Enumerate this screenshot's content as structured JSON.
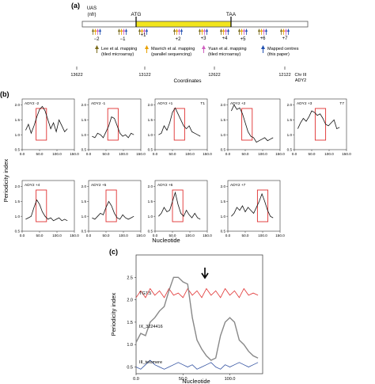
{
  "panel_a": {
    "label": "(a)",
    "uas": [
      "UAS",
      "(nfr)"
    ],
    "atg": "ATG",
    "taa": "TAA",
    "positions": [
      "−2",
      "−1",
      "+1",
      "+2",
      "+3",
      "+4",
      "+5",
      "+6",
      "+7"
    ],
    "legend": [
      {
        "line1": "Lee et al. mapping",
        "line2": "(tiled microarray)",
        "color": "#7a6a1a"
      },
      {
        "line1": "Mavrich et al. mapping",
        "line2": "(parallel sequencing)",
        "color": "#e8a000"
      },
      {
        "line1": "Yuan et al. mapping",
        "line2": "(tiled microarray)",
        "color": "#d060c0"
      },
      {
        "line1": "Mapped centres",
        "line2": "(this paper)",
        "color": "#1f4fb0"
      }
    ],
    "coord_ticks": [
      "13622",
      "13122",
      "12622",
      "12122"
    ],
    "chr_label": [
      "Chr III",
      "ADY2"
    ],
    "coord_axis_label": "Coordinates"
  },
  "panel_b": {
    "label": "(b)",
    "ylabel": "Periodicity index",
    "xlabel": "Nucleotide",
    "xticks": [
      "0.0",
      "50.0",
      "100.0",
      "150.0"
    ],
    "yticks": [
      "0.5",
      "1.0",
      "1.5",
      "2.0"
    ],
    "plots": [
      {
        "title": "ADY2 -2",
        "note": ""
      },
      {
        "title": "ADY2 -1",
        "note": ""
      },
      {
        "title": "ADY2 +1",
        "note": "T1"
      },
      {
        "title": "ADY2 +2",
        "note": ""
      },
      {
        "title": "ADY2 +3",
        "note": "T7"
      },
      {
        "title": "ADY2 +4",
        "note": ""
      },
      {
        "title": "ADY2 +5",
        "note": ""
      },
      {
        "title": "ADY2 +6",
        "note": ""
      },
      {
        "title": "ADY2 +7",
        "note": ""
      }
    ]
  },
  "panel_c": {
    "label": "(c)",
    "ylabel": "Periodicity index",
    "xlabel": "Nucleotide",
    "xticks": [
      "0.0",
      "50.0",
      "100.0"
    ],
    "yticks": [
      "0.5",
      "1.0",
      "1.5",
      "2.0",
      "2.5"
    ],
    "series_labels": [
      "TG7.5",
      "IX_3224416",
      "III_telomere"
    ]
  },
  "chart_data": [
    {
      "type": "line",
      "title": "ADY2 -2",
      "xlabel": "Nucleotide",
      "ylabel": "Periodicity index",
      "xlim": [
        0,
        150
      ],
      "ylim": [
        0.5,
        2.2
      ],
      "highlight_x": [
        40,
        70
      ],
      "series": [
        {
          "x": [
            10,
            18,
            26,
            34,
            42,
            50,
            58,
            66,
            74,
            82,
            90,
            98,
            106,
            114,
            122,
            130
          ],
          "values": [
            1.15,
            1.35,
            1.05,
            1.3,
            1.6,
            1.85,
            1.95,
            1.8,
            1.5,
            1.2,
            1.4,
            1.1,
            1.5,
            1.3,
            1.1,
            1.2
          ]
        }
      ]
    },
    {
      "type": "line",
      "title": "ADY2 -1",
      "xlabel": "Nucleotide",
      "ylabel": "Periodicity index",
      "xlim": [
        0,
        150
      ],
      "ylim": [
        0.5,
        2.2
      ],
      "highlight_x": [
        55,
        85
      ],
      "series": [
        {
          "x": [
            10,
            18,
            26,
            34,
            42,
            50,
            58,
            66,
            74,
            82,
            90,
            98,
            106,
            114,
            122,
            130
          ],
          "values": [
            0.95,
            0.9,
            1.05,
            1.0,
            0.9,
            1.1,
            1.3,
            1.6,
            1.55,
            1.3,
            1.05,
            0.95,
            1.0,
            0.9,
            1.05,
            1.0
          ]
        }
      ]
    },
    {
      "type": "line",
      "title": "ADY2 +1",
      "xlabel": "Nucleotide",
      "ylabel": "Periodicity index",
      "xlim": [
        0,
        150
      ],
      "ylim": [
        0.5,
        2.2
      ],
      "highlight_x": [
        55,
        85
      ],
      "series": [
        {
          "x": [
            10,
            18,
            26,
            34,
            42,
            50,
            58,
            66,
            74,
            82,
            90,
            98,
            106,
            114,
            122,
            130
          ],
          "values": [
            1.0,
            1.05,
            1.3,
            1.15,
            1.4,
            1.75,
            1.9,
            1.7,
            1.5,
            1.3,
            1.2,
            1.3,
            1.1,
            1.05,
            1.0,
            0.95
          ]
        }
      ]
    },
    {
      "type": "line",
      "title": "ADY2 +2",
      "xlabel": "Nucleotide",
      "ylabel": "Periodicity index",
      "xlim": [
        0,
        150
      ],
      "ylim": [
        0.5,
        2.2
      ],
      "highlight_x": [
        40,
        70
      ],
      "series": [
        {
          "x": [
            10,
            18,
            26,
            34,
            42,
            50,
            58,
            66,
            74,
            82,
            90,
            98,
            106,
            114,
            122,
            130
          ],
          "values": [
            1.8,
            2.0,
            1.85,
            1.9,
            1.7,
            1.4,
            1.1,
            0.95,
            0.9,
            0.75,
            0.8,
            0.85,
            0.9,
            0.8,
            0.85,
            0.9
          ]
        }
      ]
    },
    {
      "type": "line",
      "title": "ADY2 +3",
      "xlabel": "Nucleotide",
      "ylabel": "Periodicity index",
      "xlim": [
        0,
        150
      ],
      "ylim": [
        0.5,
        2.2
      ],
      "highlight_x": [
        60,
        90
      ],
      "series": [
        {
          "x": [
            10,
            18,
            26,
            34,
            42,
            50,
            58,
            66,
            74,
            82,
            90,
            98,
            106,
            114,
            122,
            130
          ],
          "values": [
            1.2,
            1.4,
            1.55,
            1.45,
            1.6,
            1.8,
            1.75,
            1.65,
            1.7,
            1.55,
            1.35,
            1.3,
            1.4,
            1.5,
            1.2,
            1.25
          ]
        }
      ]
    },
    {
      "type": "line",
      "title": "ADY2 +4",
      "xlabel": "Nucleotide",
      "ylabel": "Periodicity index",
      "xlim": [
        0,
        150
      ],
      "ylim": [
        0.5,
        2.2
      ],
      "highlight_x": [
        40,
        70
      ],
      "series": [
        {
          "x": [
            10,
            18,
            26,
            34,
            42,
            50,
            58,
            66,
            74,
            82,
            90,
            98,
            106,
            114,
            122,
            130
          ],
          "values": [
            0.9,
            0.95,
            1.0,
            1.3,
            1.55,
            1.4,
            1.15,
            1.0,
            0.9,
            0.95,
            0.85,
            0.9,
            0.95,
            0.85,
            0.9,
            0.85
          ]
        }
      ]
    },
    {
      "type": "line",
      "title": "ADY2 +5",
      "xlabel": "Nucleotide",
      "ylabel": "Periodicity index",
      "xlim": [
        0,
        150
      ],
      "ylim": [
        0.5,
        2.2
      ],
      "highlight_x": [
        50,
        80
      ],
      "series": [
        {
          "x": [
            10,
            18,
            26,
            34,
            42,
            50,
            58,
            66,
            74,
            82,
            90,
            98,
            106,
            114,
            122,
            130
          ],
          "values": [
            0.95,
            0.9,
            1.0,
            1.1,
            1.05,
            1.3,
            1.5,
            1.35,
            1.1,
            0.95,
            0.9,
            1.05,
            0.95,
            0.9,
            0.95,
            1.0
          ]
        }
      ]
    },
    {
      "type": "line",
      "title": "ADY2 +6",
      "xlabel": "Nucleotide",
      "ylabel": "Periodicity index",
      "xlim": [
        0,
        150
      ],
      "ylim": [
        0.5,
        2.2
      ],
      "highlight_x": [
        50,
        80
      ],
      "series": [
        {
          "x": [
            10,
            18,
            26,
            34,
            42,
            50,
            58,
            66,
            74,
            82,
            90,
            98,
            106,
            114,
            122,
            130
          ],
          "values": [
            1.0,
            1.1,
            1.3,
            1.15,
            1.2,
            1.5,
            1.8,
            1.4,
            1.1,
            1.0,
            1.2,
            1.05,
            0.95,
            1.1,
            0.95,
            0.9
          ]
        }
      ]
    },
    {
      "type": "line",
      "title": "ADY2 +7",
      "xlabel": "Nucleotide",
      "ylabel": "Periodicity index",
      "xlim": [
        0,
        150
      ],
      "ylim": [
        0.5,
        2.2
      ],
      "highlight_x": [
        85,
        115
      ],
      "series": [
        {
          "x": [
            10,
            18,
            26,
            34,
            42,
            50,
            58,
            66,
            74,
            82,
            90,
            98,
            106,
            114,
            122,
            130
          ],
          "values": [
            1.0,
            1.1,
            1.3,
            1.2,
            1.35,
            1.15,
            1.3,
            1.2,
            1.1,
            1.3,
            1.5,
            1.75,
            1.5,
            1.2,
            1.0,
            0.95
          ]
        }
      ]
    },
    {
      "type": "line",
      "title": "",
      "xlabel": "Nucleotide",
      "ylabel": "Periodicity index",
      "xlim": [
        0,
        135
      ],
      "ylim": [
        0.35,
        3.0
      ],
      "series": [
        {
          "name": "TG7.5",
          "color": "#e03030",
          "x": [
            0,
            5,
            10,
            15,
            20,
            25,
            30,
            35,
            40,
            45,
            50,
            55,
            60,
            65,
            70,
            75,
            80,
            85,
            90,
            95,
            100,
            105,
            110,
            115,
            120,
            125,
            130
          ],
          "values": [
            2.05,
            2.2,
            2.05,
            2.25,
            2.1,
            2.2,
            2.05,
            2.25,
            2.1,
            2.15,
            2.05,
            2.25,
            2.1,
            2.2,
            2.05,
            2.25,
            2.1,
            2.2,
            2.05,
            2.25,
            2.1,
            2.2,
            2.05,
            2.25,
            2.1,
            2.15,
            2.1
          ]
        },
        {
          "name": "IX_3224416",
          "color": "#888888",
          "x": [
            0,
            5,
            10,
            15,
            20,
            25,
            30,
            35,
            40,
            45,
            50,
            55,
            60,
            65,
            70,
            75,
            80,
            85,
            90,
            95,
            100,
            105,
            110,
            115,
            120,
            125,
            130
          ],
          "values": [
            1.05,
            1.25,
            1.2,
            1.5,
            1.6,
            1.75,
            1.85,
            2.2,
            2.5,
            2.5,
            2.4,
            2.35,
            1.6,
            1.1,
            0.9,
            0.75,
            0.65,
            0.7,
            1.2,
            1.5,
            1.6,
            1.5,
            1.1,
            1.0,
            0.85,
            0.75,
            0.7
          ]
        },
        {
          "name": "III_telomere",
          "color": "#3050a0",
          "x": [
            0,
            5,
            10,
            15,
            20,
            25,
            30,
            35,
            40,
            45,
            50,
            55,
            60,
            65,
            70,
            75,
            80,
            85,
            90,
            95,
            100,
            105,
            110,
            115,
            120,
            125,
            130
          ],
          "values": [
            0.5,
            0.45,
            0.55,
            0.65,
            0.55,
            0.5,
            0.45,
            0.5,
            0.55,
            0.6,
            0.55,
            0.5,
            0.55,
            0.45,
            0.5,
            0.55,
            0.6,
            0.5,
            0.45,
            0.55,
            0.5,
            0.55,
            0.6,
            0.55,
            0.5,
            0.55,
            0.6
          ]
        }
      ]
    }
  ]
}
